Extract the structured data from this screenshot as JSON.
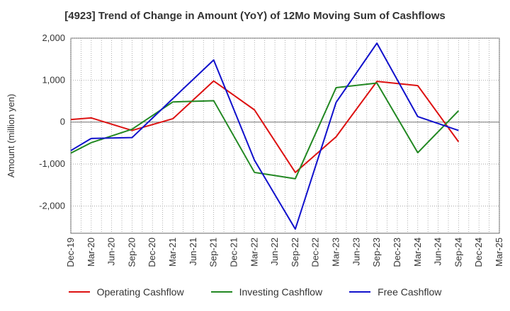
{
  "chart_data": {
    "type": "line",
    "title": "[4923]  Trend of Change in Amount (YoY) of 12Mo Moving Sum of Cashflows",
    "xlabel": "",
    "ylabel": "Amount (million yen)",
    "ylim": [
      -2650,
      2000
    ],
    "yticks": [
      2000,
      1000,
      0,
      -1000,
      -2000
    ],
    "ytick_labels": [
      "2,000",
      "1,000",
      "0",
      "-1,000",
      "-2,000"
    ],
    "categories": [
      "Dec-19",
      "Mar-20",
      "Jun-20",
      "Sep-20",
      "Dec-20",
      "Mar-21",
      "Jun-21",
      "Sep-21",
      "Dec-21",
      "Mar-22",
      "Jun-22",
      "Sep-22",
      "Dec-22",
      "Mar-23",
      "Jun-23",
      "Sep-23",
      "Dec-23",
      "Mar-24",
      "Jun-24",
      "Sep-24",
      "Dec-24",
      "Mar-25"
    ],
    "grid": true,
    "legend_position": "bottom",
    "series": [
      {
        "name": "Operating Cashflow",
        "color": "#dd1111",
        "points": [
          {
            "x": 0,
            "y": 60
          },
          {
            "x": 1,
            "y": 100
          },
          {
            "x": 3,
            "y": -200
          },
          {
            "x": 5,
            "y": 80
          },
          {
            "x": 7,
            "y": 980
          },
          {
            "x": 9,
            "y": 290
          },
          {
            "x": 11,
            "y": -1200
          },
          {
            "x": 13,
            "y": -350
          },
          {
            "x": 15,
            "y": 970
          },
          {
            "x": 17,
            "y": 870
          },
          {
            "x": 19,
            "y": -470
          }
        ]
      },
      {
        "name": "Investing Cashflow",
        "color": "#228822",
        "points": [
          {
            "x": 0,
            "y": -740
          },
          {
            "x": 1,
            "y": -490
          },
          {
            "x": 3,
            "y": -170
          },
          {
            "x": 5,
            "y": 480
          },
          {
            "x": 7,
            "y": 510
          },
          {
            "x": 9,
            "y": -1200
          },
          {
            "x": 11,
            "y": -1350
          },
          {
            "x": 13,
            "y": 820
          },
          {
            "x": 15,
            "y": 930
          },
          {
            "x": 17,
            "y": -730
          },
          {
            "x": 19,
            "y": 270
          }
        ]
      },
      {
        "name": "Free Cashflow",
        "color": "#1111cc",
        "points": [
          {
            "x": 0,
            "y": -680
          },
          {
            "x": 1,
            "y": -390
          },
          {
            "x": 3,
            "y": -370
          },
          {
            "x": 5,
            "y": 560
          },
          {
            "x": 7,
            "y": 1480
          },
          {
            "x": 9,
            "y": -910
          },
          {
            "x": 11,
            "y": -2550
          },
          {
            "x": 13,
            "y": 470
          },
          {
            "x": 15,
            "y": 1880
          },
          {
            "x": 17,
            "y": 130
          },
          {
            "x": 19,
            "y": -200
          }
        ]
      }
    ]
  }
}
